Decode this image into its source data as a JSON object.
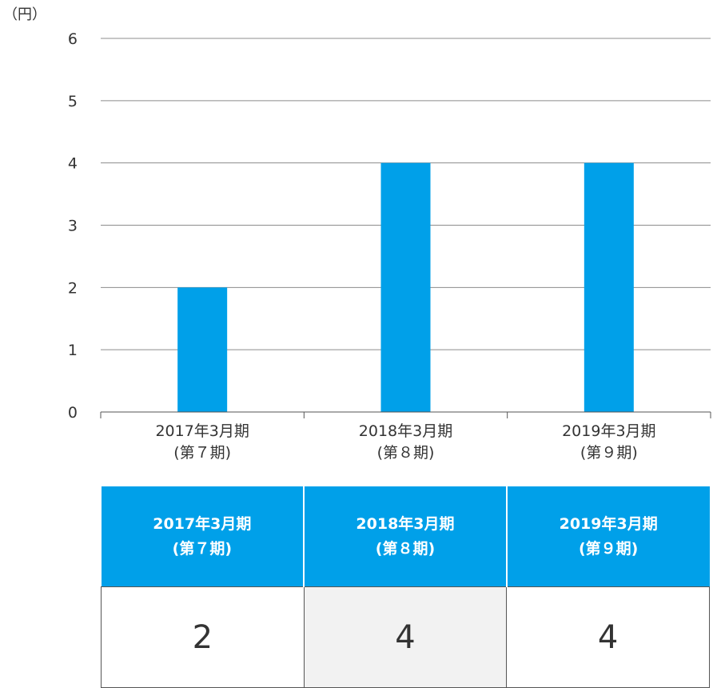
{
  "chart_data": {
    "type": "bar",
    "unit_label": "（円）",
    "categories": [
      {
        "line1": "2017年3月期",
        "line2": "(第７期)"
      },
      {
        "line1": "2018年3月期",
        "line2": "(第８期)"
      },
      {
        "line1": "2019年3月期",
        "line2": "(第９期)"
      }
    ],
    "values": [
      2,
      4,
      4
    ],
    "ylim": [
      0,
      6
    ],
    "yticks": [
      "0",
      "1",
      "2",
      "3",
      "4",
      "5",
      "6"
    ],
    "grid": true,
    "bar_color": "#00a0e9",
    "grid_color": "#8c8c8c"
  },
  "table": {
    "headers": [
      {
        "line1": "2017年3月期",
        "line2": "(第７期)"
      },
      {
        "line1": "2018年3月期",
        "line2": "(第８期)"
      },
      {
        "line1": "2019年3月期",
        "line2": "(第９期)"
      }
    ],
    "values": [
      "2",
      "4",
      "4"
    ],
    "header_color": "#00a0e9"
  }
}
